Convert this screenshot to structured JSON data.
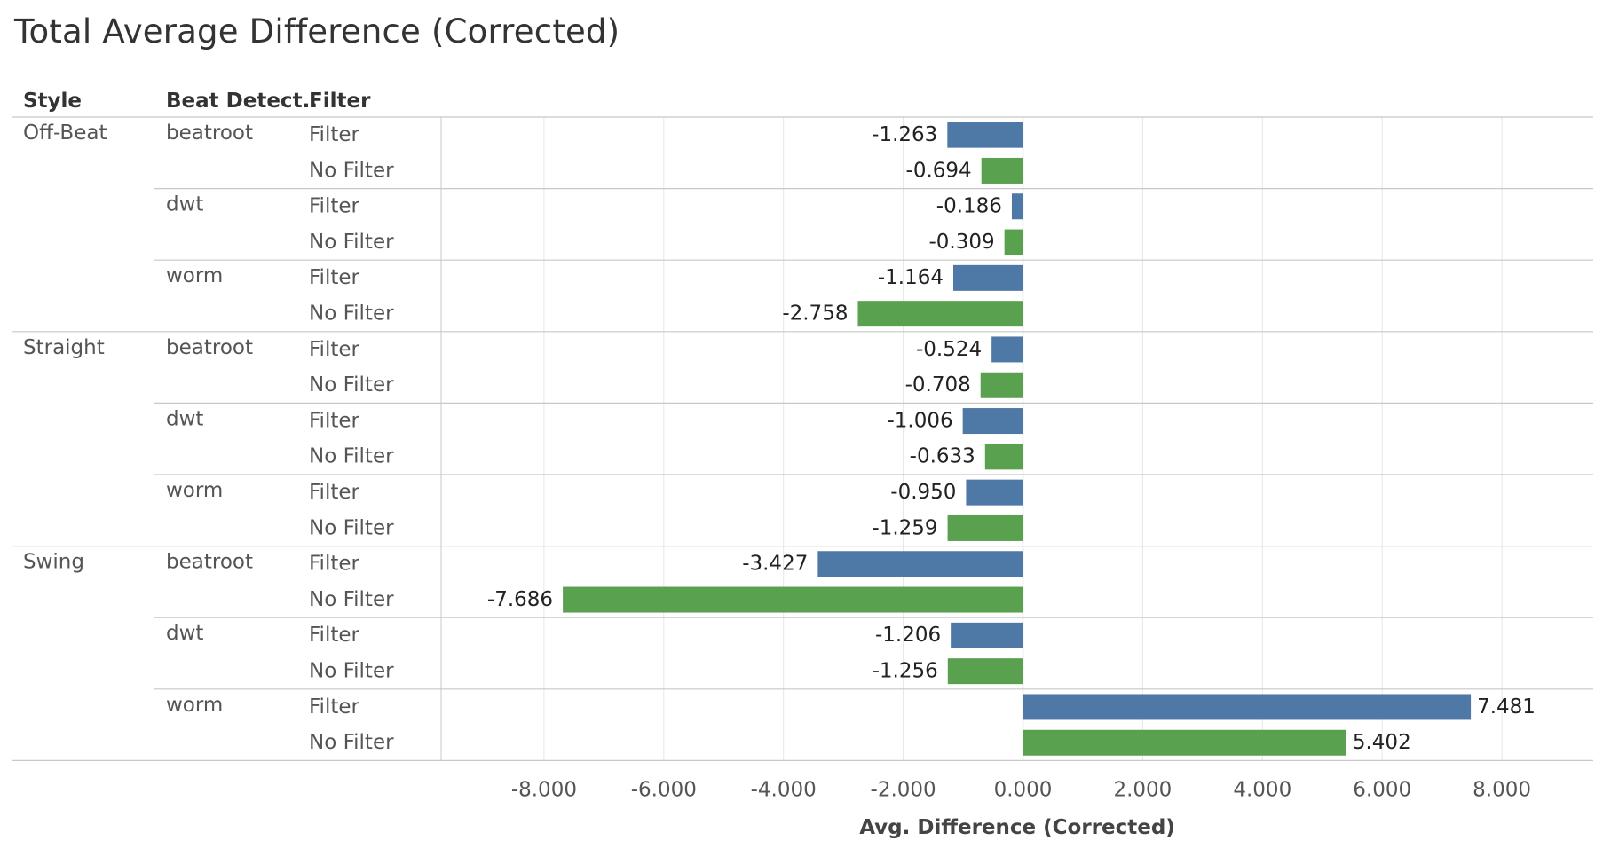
{
  "title": "Total Average Difference (Corrected)",
  "headers": {
    "style": "Style",
    "detector": "Beat Detect..",
    "filter": "Filter"
  },
  "colors": {
    "filter": "#4e79a7",
    "no_filter": "#59a14f",
    "gridline": "#e6e6e6",
    "divider": "#c8c8c8"
  },
  "chart_data": {
    "type": "bar",
    "orientation": "horizontal",
    "title": "Total Average Difference (Corrected)",
    "xlabel": "Avg. Difference (Corrected)",
    "xlim": [
      -9.5,
      9.5
    ],
    "xticks": [
      -8,
      -6,
      -4,
      -2,
      0,
      2,
      4,
      6,
      8
    ],
    "xtick_labels": [
      "-8.000",
      "-6.000",
      "-4.000",
      "-2.000",
      "0.000",
      "2.000",
      "4.000",
      "6.000",
      "8.000"
    ],
    "grid": true,
    "rows": [
      {
        "style": "Off-Beat",
        "detector": "beatroot",
        "filter": "Filter",
        "value": -1.263,
        "label": "-1.263"
      },
      {
        "style": "Off-Beat",
        "detector": "beatroot",
        "filter": "No Filter",
        "value": -0.694,
        "label": "-0.694"
      },
      {
        "style": "Off-Beat",
        "detector": "dwt",
        "filter": "Filter",
        "value": -0.186,
        "label": "-0.186"
      },
      {
        "style": "Off-Beat",
        "detector": "dwt",
        "filter": "No Filter",
        "value": -0.309,
        "label": "-0.309"
      },
      {
        "style": "Off-Beat",
        "detector": "worm",
        "filter": "Filter",
        "value": -1.164,
        "label": "-1.164"
      },
      {
        "style": "Off-Beat",
        "detector": "worm",
        "filter": "No Filter",
        "value": -2.758,
        "label": "-2.758"
      },
      {
        "style": "Straight",
        "detector": "beatroot",
        "filter": "Filter",
        "value": -0.524,
        "label": "-0.524"
      },
      {
        "style": "Straight",
        "detector": "beatroot",
        "filter": "No Filter",
        "value": -0.708,
        "label": "-0.708"
      },
      {
        "style": "Straight",
        "detector": "dwt",
        "filter": "Filter",
        "value": -1.006,
        "label": "-1.006"
      },
      {
        "style": "Straight",
        "detector": "dwt",
        "filter": "No Filter",
        "value": -0.633,
        "label": "-0.633"
      },
      {
        "style": "Straight",
        "detector": "worm",
        "filter": "Filter",
        "value": -0.95,
        "label": "-0.950"
      },
      {
        "style": "Straight",
        "detector": "worm",
        "filter": "No Filter",
        "value": -1.259,
        "label": "-1.259"
      },
      {
        "style": "Swing",
        "detector": "beatroot",
        "filter": "Filter",
        "value": -3.427,
        "label": "-3.427"
      },
      {
        "style": "Swing",
        "detector": "beatroot",
        "filter": "No Filter",
        "value": -7.686,
        "label": "-7.686"
      },
      {
        "style": "Swing",
        "detector": "dwt",
        "filter": "Filter",
        "value": -1.206,
        "label": "-1.206"
      },
      {
        "style": "Swing",
        "detector": "dwt",
        "filter": "No Filter",
        "value": -1.256,
        "label": "-1.256"
      },
      {
        "style": "Swing",
        "detector": "worm",
        "filter": "Filter",
        "value": 7.481,
        "label": "7.481"
      },
      {
        "style": "Swing",
        "detector": "worm",
        "filter": "No Filter",
        "value": 5.402,
        "label": "5.402"
      }
    ]
  }
}
